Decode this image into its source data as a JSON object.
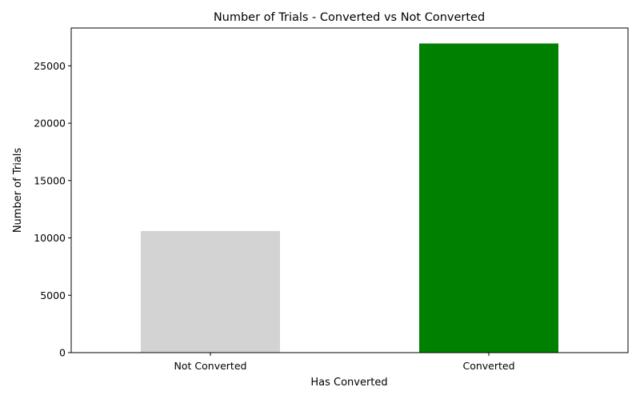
{
  "chart_data": {
    "type": "bar",
    "title": "Number of Trials - Converted vs Not Converted",
    "xlabel": "Has Converted",
    "ylabel": "Number of Trials",
    "categories": [
      "Not Converted",
      "Converted"
    ],
    "values": [
      10600,
      26950
    ],
    "colors": [
      "#d3d3d3",
      "#008000"
    ],
    "ylim": [
      0,
      28300
    ],
    "yticks": [
      0,
      5000,
      10000,
      15000,
      20000,
      25000
    ],
    "grid": false,
    "legend": "none"
  }
}
